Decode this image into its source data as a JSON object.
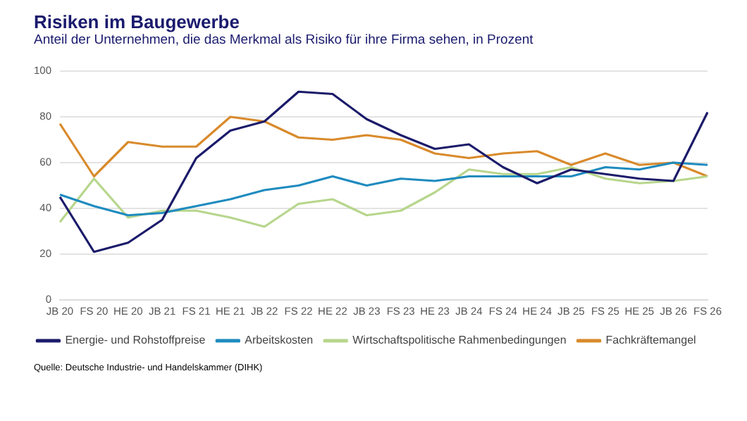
{
  "chart_data": {
    "type": "line",
    "title": "Risiken im Baugewerbe",
    "subtitle": "Anteil der Unternehmen, die das Merkmal als Risiko für ihre Firma sehen, in Prozent",
    "categories": [
      "JB 20",
      "FS 20",
      "HE 20",
      "JB 21",
      "FS 21",
      "HE 21",
      "JB 22",
      "FS 22",
      "HE 22",
      "JB 23",
      "FS 23",
      "HE 23",
      "JB 24",
      "FS 24",
      "HE 24",
      "JB 25",
      "FS 25",
      "HE 25",
      "JB 26",
      "FS 26"
    ],
    "series": [
      {
        "name": "Energie- und Rohstoffpreise",
        "color": "#1b1b6b",
        "values": [
          45,
          21,
          25,
          35,
          62,
          74,
          78,
          91,
          90,
          79,
          72,
          66,
          68,
          58,
          51,
          57,
          55,
          53,
          52,
          82
        ]
      },
      {
        "name": "Arbeitskosten",
        "color": "#1f8bbf",
        "values": [
          46,
          41,
          37,
          38,
          41,
          44,
          48,
          50,
          54,
          50,
          53,
          52,
          54,
          54,
          54,
          54,
          58,
          57,
          60,
          59
        ]
      },
      {
        "name": "Wirtschaftspolitische Rahmenbedingungen",
        "color": "#b7d68c",
        "values": [
          34,
          53,
          36,
          39,
          39,
          36,
          32,
          42,
          44,
          37,
          39,
          47,
          57,
          55,
          55,
          58,
          53,
          51,
          52,
          54
        ]
      },
      {
        "name": "Fachkräftemangel",
        "color": "#d98a2b",
        "values": [
          77,
          54,
          69,
          67,
          67,
          80,
          78,
          71,
          70,
          72,
          70,
          64,
          62,
          64,
          65,
          59,
          64,
          59,
          60,
          54
        ]
      }
    ],
    "ylim": [
      0,
      100
    ],
    "yticks": [
      0,
      20,
      40,
      60,
      80,
      100
    ],
    "grid": "y",
    "legend": "bottom",
    "marker": "none",
    "line_style": "solid",
    "annotations": [
      "Quelle: Deutsche Industrie- und Handelskammer (DIHK)"
    ]
  }
}
